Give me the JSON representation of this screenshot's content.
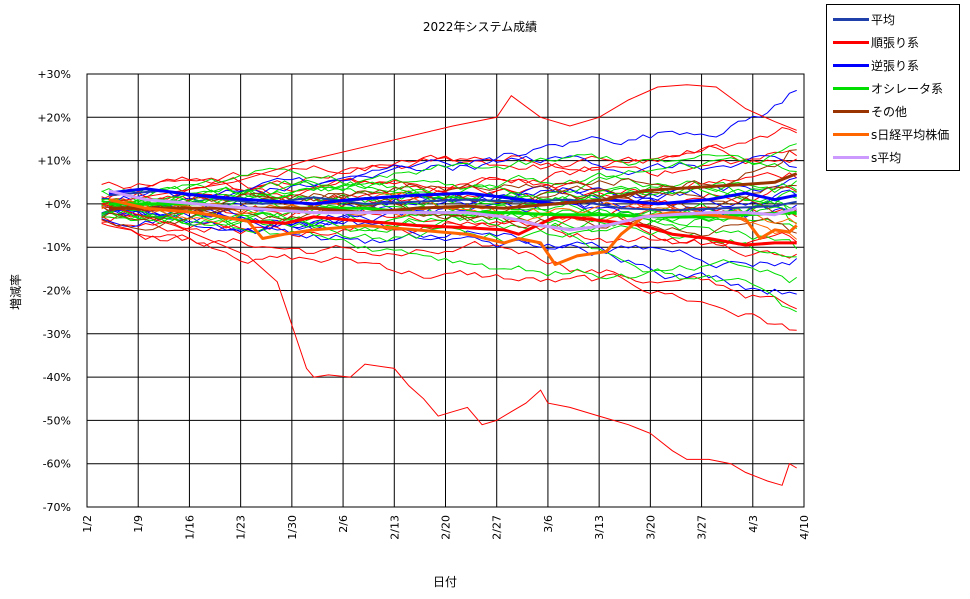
{
  "chart_data": {
    "type": "line",
    "title": "2022年システム成績",
    "xlabel": "日付",
    "ylabel": "増減率",
    "ylim": [
      -70,
      30
    ],
    "y_ticks": [
      {
        "value": 30,
        "label": "+30%"
      },
      {
        "value": 20,
        "label": "+20%"
      },
      {
        "value": 10,
        "label": "+10%"
      },
      {
        "value": 0,
        "label": "+0%"
      },
      {
        "value": -10,
        "label": "-10%"
      },
      {
        "value": -20,
        "label": "-20%"
      },
      {
        "value": -30,
        "label": "-30%"
      },
      {
        "value": -40,
        "label": "-40%"
      },
      {
        "value": -50,
        "label": "-50%"
      },
      {
        "value": -60,
        "label": "-60%"
      },
      {
        "value": -70,
        "label": "-70%"
      }
    ],
    "x_ticks": [
      "1/2",
      "1/9",
      "1/16",
      "1/23",
      "1/30",
      "2/6",
      "2/13",
      "2/20",
      "2/27",
      "3/6",
      "3/13",
      "3/20",
      "3/27",
      "4/3",
      "4/10"
    ],
    "x_range_days": [
      0,
      98
    ],
    "grid": true,
    "legend_position": "right-top",
    "series": [
      {
        "name": "平均",
        "color": "#1f3faa",
        "width": 2,
        "points": [
          [
            3,
            2
          ],
          [
            10,
            3
          ],
          [
            17,
            1.5
          ],
          [
            24,
            0
          ],
          [
            31,
            1.5
          ],
          [
            38,
            0
          ],
          [
            45,
            0.5
          ],
          [
            52,
            1
          ],
          [
            59,
            0.5
          ],
          [
            66,
            1
          ],
          [
            73,
            -1
          ],
          [
            80,
            -1.5
          ],
          [
            87,
            -1
          ],
          [
            94,
            -0.5
          ],
          [
            97,
            0.5
          ]
        ]
      },
      {
        "name": "順張り系",
        "color": "#ff0000",
        "width": 3,
        "points": [
          [
            3,
            -1
          ],
          [
            8,
            -1
          ],
          [
            15,
            -2
          ],
          [
            22,
            -4
          ],
          [
            27,
            -4.5
          ],
          [
            31,
            -3
          ],
          [
            38,
            -4
          ],
          [
            45,
            -5
          ],
          [
            52,
            -5.5
          ],
          [
            57,
            -6
          ],
          [
            59,
            -7
          ],
          [
            64,
            -3
          ],
          [
            66,
            -3
          ],
          [
            71,
            -4
          ],
          [
            76,
            -5
          ],
          [
            80,
            -7
          ],
          [
            85,
            -8
          ],
          [
            90,
            -9.5
          ],
          [
            94,
            -9
          ],
          [
            97,
            -9
          ]
        ]
      },
      {
        "name": "逆張り系",
        "color": "#0000ff",
        "width": 3,
        "points": [
          [
            3,
            2.5
          ],
          [
            8,
            3.5
          ],
          [
            15,
            2
          ],
          [
            22,
            1
          ],
          [
            31,
            0
          ],
          [
            36,
            1
          ],
          [
            45,
            2
          ],
          [
            52,
            2.5
          ],
          [
            57,
            1.5
          ],
          [
            64,
            0
          ],
          [
            71,
            1
          ],
          [
            78,
            0
          ],
          [
            85,
            1
          ],
          [
            90,
            2.5
          ],
          [
            94,
            1
          ],
          [
            97,
            2
          ]
        ]
      },
      {
        "name": "オシレータ系",
        "color": "#00dd00",
        "width": 3,
        "points": [
          [
            3,
            0
          ],
          [
            15,
            0
          ],
          [
            22,
            -1
          ],
          [
            31,
            -1
          ],
          [
            38,
            -1
          ],
          [
            45,
            -2
          ],
          [
            52,
            -2
          ],
          [
            57,
            -2
          ],
          [
            64,
            -2.5
          ],
          [
            71,
            -2.5
          ],
          [
            78,
            -3
          ],
          [
            85,
            -3
          ],
          [
            90,
            -2.5
          ],
          [
            97,
            -2
          ]
        ]
      },
      {
        "name": "その他",
        "color": "#993300",
        "width": 3,
        "points": [
          [
            3,
            -1
          ],
          [
            8,
            -1
          ],
          [
            15,
            -1
          ],
          [
            22,
            -1
          ],
          [
            31,
            -1
          ],
          [
            38,
            -2
          ],
          [
            45,
            -1
          ],
          [
            52,
            -0.5
          ],
          [
            57,
            -1
          ],
          [
            64,
            0
          ],
          [
            71,
            1
          ],
          [
            76,
            3
          ],
          [
            80,
            3.5
          ],
          [
            85,
            4
          ],
          [
            90,
            4.5
          ],
          [
            94,
            5
          ],
          [
            97,
            7
          ]
        ]
      },
      {
        "name": "s日経平均株価",
        "color": "#ff6600",
        "width": 3,
        "points": [
          [
            3,
            1
          ],
          [
            8,
            -1
          ],
          [
            15,
            -2
          ],
          [
            22,
            -4
          ],
          [
            24,
            -8
          ],
          [
            27,
            -7
          ],
          [
            31,
            -6
          ],
          [
            38,
            -5
          ],
          [
            45,
            -6
          ],
          [
            52,
            -7
          ],
          [
            57,
            -9
          ],
          [
            59,
            -8
          ],
          [
            62,
            -9
          ],
          [
            64,
            -14
          ],
          [
            67,
            -12
          ],
          [
            71,
            -11
          ],
          [
            73,
            -7
          ],
          [
            76,
            -3
          ],
          [
            80,
            -2
          ],
          [
            85,
            -2.5
          ],
          [
            90,
            -3.5
          ],
          [
            92,
            -8
          ],
          [
            94,
            -6
          ],
          [
            96,
            -6.5
          ],
          [
            97,
            -5
          ]
        ]
      },
      {
        "name": "s平均",
        "color": "#cc99ff",
        "width": 3,
        "points": [
          [
            3,
            3
          ],
          [
            8,
            1
          ],
          [
            15,
            0
          ],
          [
            22,
            -1
          ],
          [
            31,
            -2
          ],
          [
            38,
            -2
          ],
          [
            45,
            -2
          ],
          [
            52,
            -2
          ],
          [
            57,
            -3
          ],
          [
            62,
            -5
          ],
          [
            66,
            -6
          ],
          [
            71,
            -5
          ],
          [
            76,
            -3
          ],
          [
            80,
            -2.5
          ],
          [
            85,
            -2
          ],
          [
            90,
            -2
          ],
          [
            94,
            -2.5
          ],
          [
            97,
            -1
          ]
        ]
      }
    ]
  }
}
